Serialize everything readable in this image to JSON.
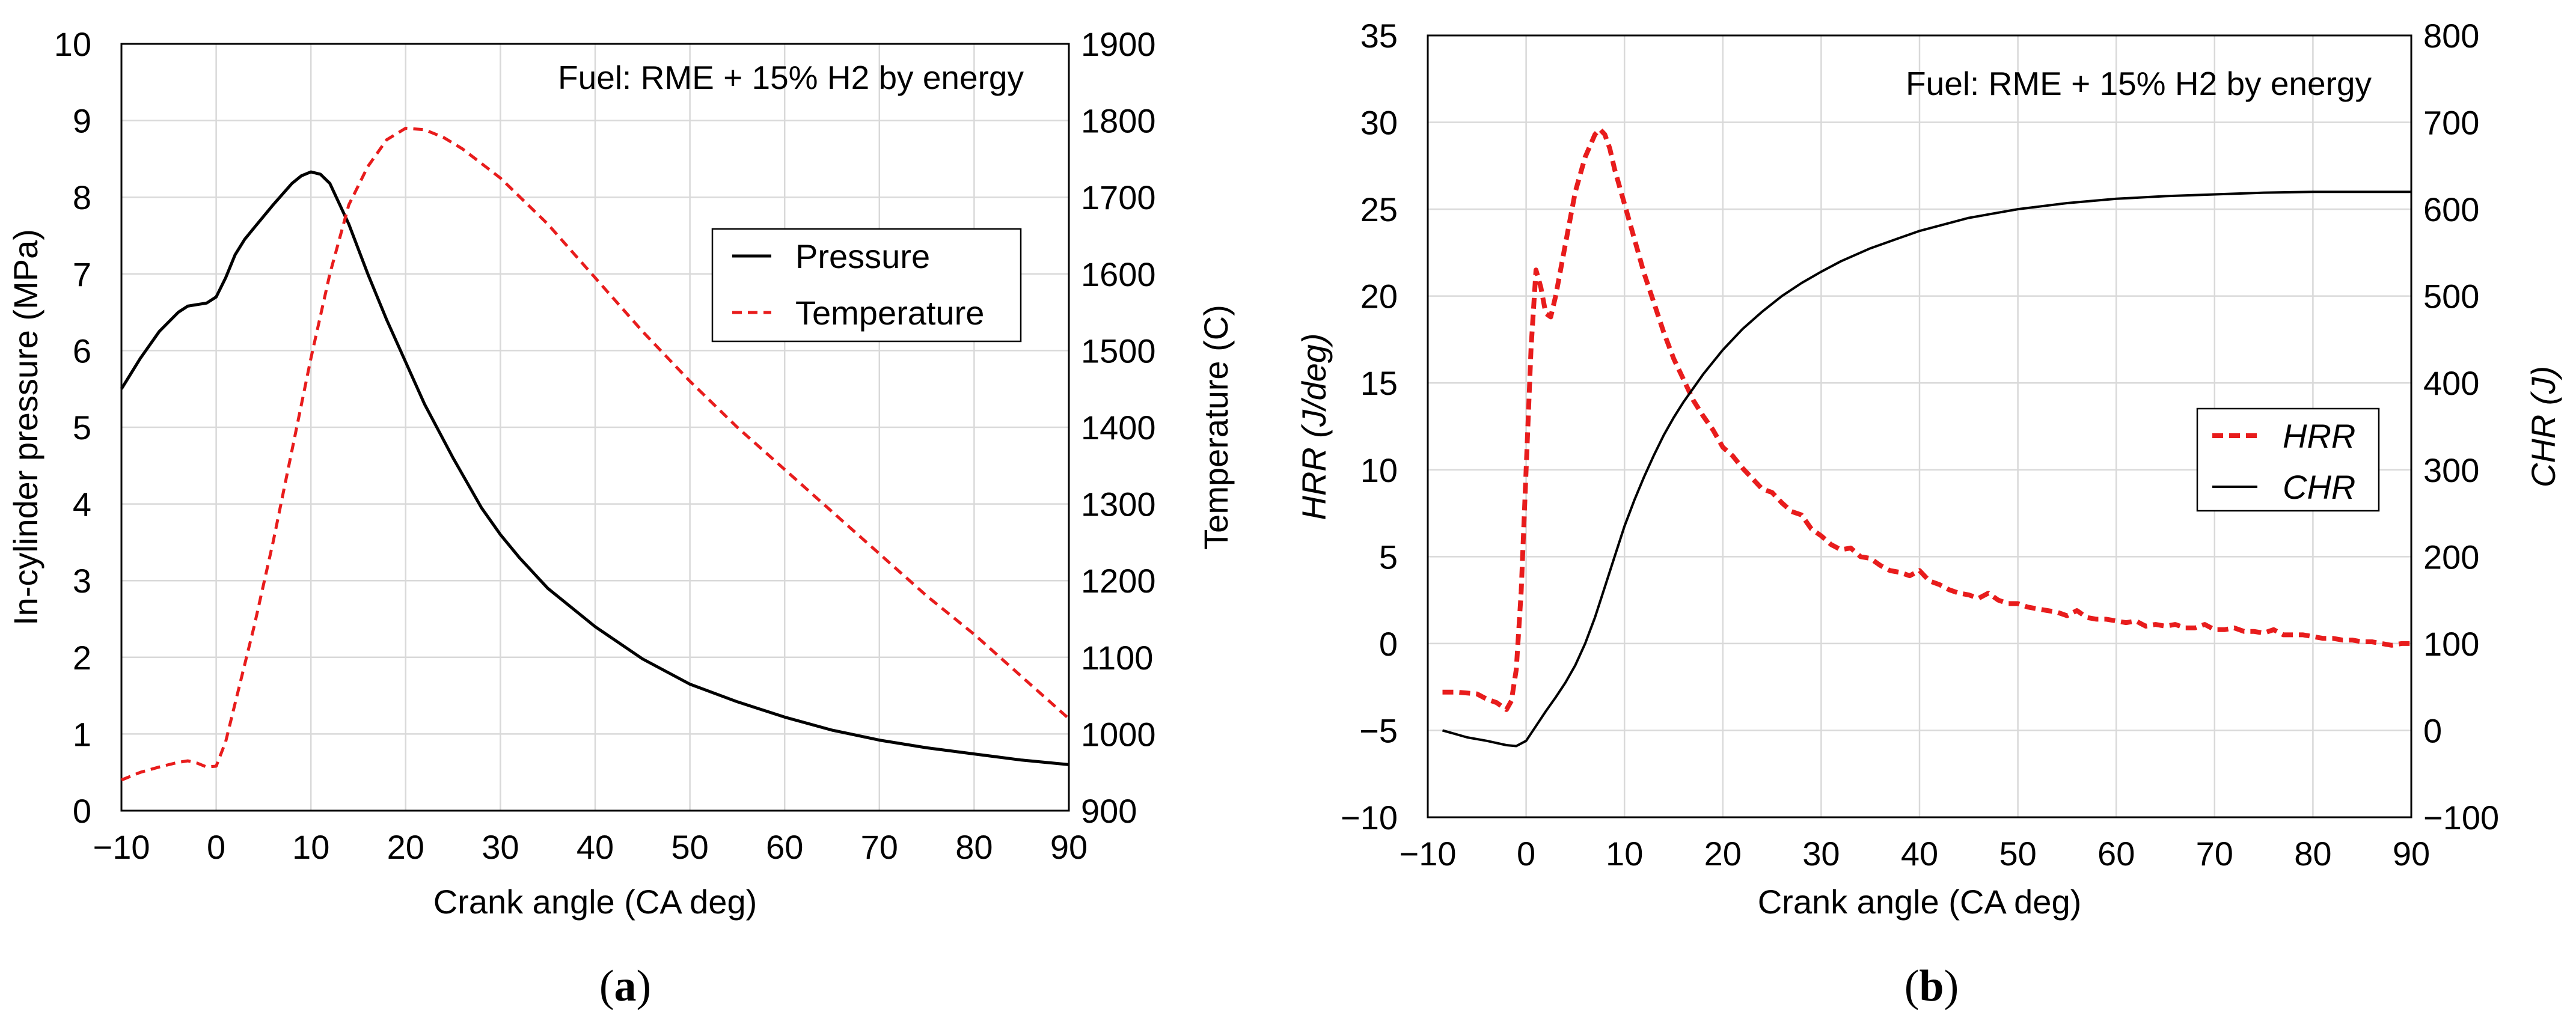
{
  "chart_data": [
    {
      "id": "a",
      "type": "line",
      "panel_label": "a",
      "annotation": "Fuel: RME + 15% H2 by energy",
      "xlabel": "Crank angle (CA deg)",
      "ylabel": "In-cylinder pressure (MPa)",
      "y2label": "Temperature  (C)",
      "xlim": [
        -10,
        90
      ],
      "ylim": [
        0,
        10
      ],
      "y2lim": [
        900,
        1900
      ],
      "xticks": [
        -10,
        0,
        10,
        20,
        30,
        40,
        50,
        60,
        70,
        80,
        90
      ],
      "xtick_labels": [
        "−10",
        "0",
        "10",
        "20",
        "30",
        "40",
        "50",
        "60",
        "70",
        "80",
        "90"
      ],
      "yticks": [
        0,
        1,
        2,
        3,
        4,
        5,
        6,
        7,
        8,
        9,
        10
      ],
      "y2ticks": [
        900,
        1000,
        1100,
        1200,
        1300,
        1400,
        1500,
        1600,
        1700,
        1800,
        1900
      ],
      "grid": true,
      "legend_position": "center-right",
      "series": [
        {
          "name": "Pressure",
          "axis": "left",
          "color": "#000000",
          "style": "solid",
          "x": [
            -10,
            -8,
            -6,
            -4,
            -3,
            -2,
            -1,
            0,
            1,
            2,
            3,
            4,
            6,
            8,
            9,
            10,
            11,
            12,
            14,
            16,
            18,
            20,
            22,
            25,
            28,
            30,
            32,
            35,
            40,
            45,
            50,
            55,
            60,
            65,
            70,
            75,
            80,
            85,
            90
          ],
          "values": [
            5.5,
            5.9,
            6.25,
            6.5,
            6.58,
            6.6,
            6.62,
            6.7,
            6.95,
            7.25,
            7.45,
            7.6,
            7.9,
            8.18,
            8.28,
            8.33,
            8.3,
            8.18,
            7.65,
            7.0,
            6.4,
            5.85,
            5.3,
            4.6,
            3.95,
            3.6,
            3.3,
            2.9,
            2.4,
            1.98,
            1.65,
            1.42,
            1.22,
            1.05,
            0.92,
            0.82,
            0.74,
            0.66,
            0.6
          ]
        },
        {
          "name": "Temperature",
          "axis": "right",
          "color": "#e81c1c",
          "style": "dashed",
          "x": [
            -10,
            -8,
            -6,
            -4,
            -3,
            -2,
            -1,
            0,
            1,
            2,
            4,
            6,
            8,
            10,
            12,
            14,
            16,
            18,
            20,
            22,
            24,
            26,
            30,
            35,
            40,
            45,
            50,
            55,
            60,
            65,
            70,
            75,
            80,
            85,
            90
          ],
          "values": [
            940,
            950,
            957,
            963,
            965,
            962,
            957,
            958,
            990,
            1040,
            1140,
            1250,
            1370,
            1490,
            1600,
            1690,
            1740,
            1775,
            1790,
            1788,
            1778,
            1763,
            1725,
            1665,
            1595,
            1525,
            1460,
            1400,
            1345,
            1290,
            1235,
            1180,
            1130,
            1075,
            1020
          ]
        }
      ]
    },
    {
      "id": "b",
      "type": "line",
      "panel_label": "b",
      "annotation": "Fuel: RME + 15% H2 by energy",
      "xlabel": "Crank angle (CA deg)",
      "ylabel_italic": "HRR",
      "ylabel_unit": "(J/deg)",
      "y2label_italic": "CHR",
      "y2label_unit": "(J)",
      "xlim": [
        -10,
        90
      ],
      "ylim": [
        -10,
        35
      ],
      "y2lim": [
        -100,
        800
      ],
      "xticks": [
        -10,
        0,
        10,
        20,
        30,
        40,
        50,
        60,
        70,
        80,
        90
      ],
      "xtick_labels": [
        "−10",
        "0",
        "10",
        "20",
        "30",
        "40",
        "50",
        "60",
        "70",
        "80",
        "90"
      ],
      "yticks": [
        -10,
        -5,
        0,
        5,
        10,
        15,
        20,
        25,
        30,
        35
      ],
      "ytick_labels": [
        "−10",
        "−5",
        "0",
        "5",
        "10",
        "15",
        "20",
        "25",
        "30",
        "35"
      ],
      "y2ticks": [
        -100,
        0,
        100,
        200,
        300,
        400,
        500,
        600,
        700,
        800
      ],
      "y2tick_labels": [
        "−100",
        "0",
        "100",
        "200",
        "300",
        "400",
        "500",
        "600",
        "700",
        "800"
      ],
      "grid": true,
      "legend_position": "center-right",
      "series": [
        {
          "name": "HRR",
          "axis": "left",
          "color": "#e81c1c",
          "style": "dashed",
          "x": [
            -8.5,
            -7,
            -5,
            -4,
            -3,
            -2,
            -1.5,
            -1,
            -0.5,
            0,
            0.5,
            1,
            1.5,
            2,
            2.5,
            3,
            3.5,
            4,
            5,
            6,
            7,
            7.5,
            8,
            8.5,
            9,
            10,
            11,
            12,
            13,
            14,
            15,
            16,
            17,
            18,
            19,
            20,
            21,
            22,
            23,
            24,
            25,
            26,
            27,
            28,
            29,
            30,
            31,
            32,
            33,
            34,
            35,
            36,
            37,
            38,
            39,
            40,
            41,
            42,
            43,
            44,
            45,
            46,
            47,
            48,
            49,
            50,
            51,
            52,
            53,
            54,
            55,
            56,
            57,
            58,
            59,
            60,
            61,
            62,
            63,
            64,
            65,
            66,
            67,
            68,
            69,
            70,
            71,
            72,
            73,
            74,
            75,
            76,
            77,
            78,
            79,
            80,
            81,
            82,
            83,
            84,
            85,
            86,
            87,
            88,
            89,
            90
          ],
          "values": [
            -2.8,
            -2.8,
            -2.9,
            -3.2,
            -3.4,
            -3.8,
            -3.3,
            -1.5,
            3,
            10,
            17,
            21.5,
            20.5,
            19,
            18.8,
            20,
            21.5,
            23,
            26,
            28,
            29.3,
            29.6,
            29.3,
            28.5,
            27.3,
            25.3,
            23.3,
            21.3,
            19.6,
            17.9,
            16.4,
            15.2,
            14,
            13.1,
            12.3,
            11.3,
            10.8,
            10.1,
            9.5,
            8.9,
            8.7,
            8.1,
            7.6,
            7.4,
            6.6,
            6.2,
            5.7,
            5.4,
            5.5,
            5.0,
            4.9,
            4.5,
            4.2,
            4.1,
            3.9,
            4.2,
            3.6,
            3.4,
            3.1,
            2.9,
            2.8,
            2.6,
            2.9,
            2.5,
            2.3,
            2.3,
            2.1,
            2.0,
            1.9,
            1.8,
            1.6,
            1.9,
            1.5,
            1.4,
            1.4,
            1.3,
            1.2,
            1.3,
            1.0,
            1.1,
            1.0,
            1.1,
            0.9,
            0.9,
            1.1,
            0.8,
            0.8,
            0.9,
            0.7,
            0.7,
            0.6,
            0.8,
            0.5,
            0.5,
            0.5,
            0.4,
            0.3,
            0.3,
            0.2,
            0.2,
            0.1,
            0.1,
            0.0,
            -0.1,
            0.0,
            0.0
          ]
        },
        {
          "name": "CHR",
          "axis": "right",
          "color": "#000000",
          "style": "solid",
          "x": [
            -8.5,
            -6,
            -4,
            -2,
            -1,
            0,
            1,
            2,
            3,
            4,
            5,
            6,
            7,
            8,
            9,
            10,
            11,
            12,
            13,
            14,
            15,
            16,
            18,
            20,
            22,
            24,
            26,
            28,
            30,
            32,
            35,
            38,
            40,
            45,
            50,
            55,
            60,
            65,
            70,
            75,
            80,
            85,
            90
          ],
          "values": [
            0,
            -8,
            -12,
            -17,
            -18,
            -12,
            5,
            22,
            38,
            55,
            75,
            100,
            130,
            165,
            200,
            235,
            265,
            292,
            317,
            340,
            360,
            378,
            410,
            438,
            462,
            482,
            500,
            515,
            528,
            540,
            555,
            567,
            575,
            590,
            600,
            607,
            612,
            615,
            617,
            619,
            620,
            620,
            620
          ]
        }
      ]
    }
  ]
}
